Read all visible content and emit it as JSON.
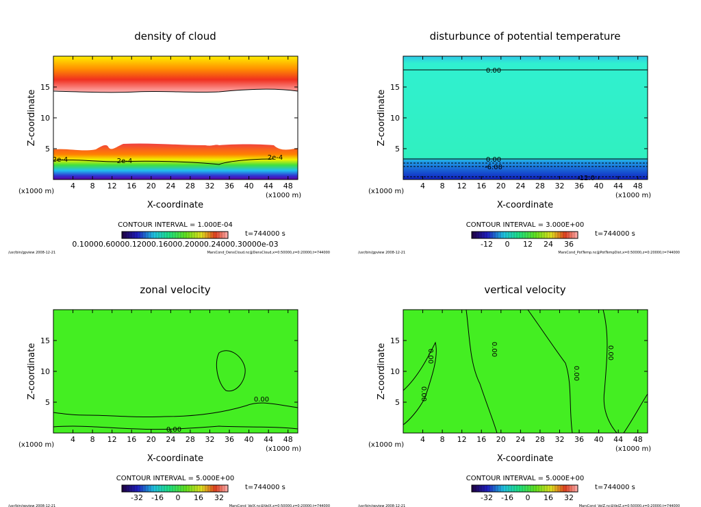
{
  "chart_data": [
    {
      "type": "heatmap",
      "title": "density of cloud",
      "xlabel": "X-coordinate",
      "ylabel": "Z-coordinate",
      "xunit": "(x1000 m)",
      "xlim": [
        0,
        50
      ],
      "ylim": [
        0,
        20
      ],
      "xticks": [
        4,
        8,
        12,
        16,
        20,
        24,
        28,
        32,
        36,
        40,
        44,
        48
      ],
      "yticks": [
        5,
        10,
        15
      ],
      "contour_interval": "CONTOUR INTERVAL = 1.000E-04",
      "time": "t=744000 s",
      "colorbar_labels": [
        "0.10000.60000.12000.16000.20000.24000.30000e-03"
      ],
      "contour_labels": [
        "2e-4",
        "2e-4",
        "2e-4"
      ],
      "footer_left": "/usr/bin/gpview  2008-12-21",
      "footer_right": "MarsCond_DensCloud.nc@DensCloud,x=0:50000,z=0:20000,t=744000"
    },
    {
      "type": "heatmap",
      "title": "disturbunce of potential temperature",
      "xlabel": "X-coordinate",
      "ylabel": "Z-coordinate",
      "xunit": "(x1000 m)",
      "xlim": [
        0,
        50
      ],
      "ylim": [
        0,
        20
      ],
      "xticks": [
        4,
        8,
        12,
        16,
        20,
        24,
        28,
        32,
        36,
        40,
        44,
        48
      ],
      "yticks": [
        5,
        10,
        15
      ],
      "contour_interval": "CONTOUR INTERVAL = 3.000E+00",
      "time": "t=744000 s",
      "colorbar_labels": [
        "-12",
        "0",
        "12",
        "24",
        "36"
      ],
      "contour_labels": [
        "0.00",
        "0.00",
        "-6.00",
        "-12.0"
      ],
      "footer_left": "/usr/bin/gpview  2008-12-21",
      "footer_right": "MarsCond_PotTemp.nc@PotTempDist,x=0:50000,z=0:20000,t=744000"
    },
    {
      "type": "heatmap",
      "title": "zonal velocity",
      "xlabel": "X-coordinate",
      "ylabel": "Z-coordinate",
      "xunit": "(x1000 m)",
      "xlim": [
        0,
        50
      ],
      "ylim": [
        0,
        20
      ],
      "xticks": [
        4,
        8,
        12,
        16,
        20,
        24,
        28,
        32,
        36,
        40,
        44,
        48
      ],
      "yticks": [
        5,
        10,
        15
      ],
      "contour_interval": "CONTOUR INTERVAL = 5.000E+00",
      "time": "t=744000 s",
      "colorbar_labels": [
        "-32",
        "-16",
        "0",
        "16",
        "32"
      ],
      "contour_labels": [
        "0.00",
        "0.00"
      ],
      "footer_left": "/usr/bin/gpview  2008-12-21",
      "footer_right": "MarsCond_VelX.nc@VelX,x=0:50000,z=0:20000,t=744000"
    },
    {
      "type": "heatmap",
      "title": "vertical velocity",
      "xlabel": "X-coordinate",
      "ylabel": "Z-coordinate",
      "xunit": "(x1000 m)",
      "xlim": [
        0,
        50
      ],
      "ylim": [
        0,
        20
      ],
      "xticks": [
        4,
        8,
        12,
        16,
        20,
        24,
        28,
        32,
        36,
        40,
        44,
        48
      ],
      "yticks": [
        5,
        10,
        15
      ],
      "contour_interval": "CONTOUR INTERVAL = 5.000E+00",
      "time": "t=744000 s",
      "colorbar_labels": [
        "-32",
        "-16",
        "0",
        "16",
        "32"
      ],
      "contour_labels": [
        "0.00",
        "0.00",
        "0.00",
        "0.00",
        "0.00"
      ],
      "footer_left": "/usr/bin/gpview  2008-12-21",
      "footer_right": "MarsCond_VelZ.nc@VelZ,x=0:50000,z=0:20000,t=744000"
    }
  ]
}
